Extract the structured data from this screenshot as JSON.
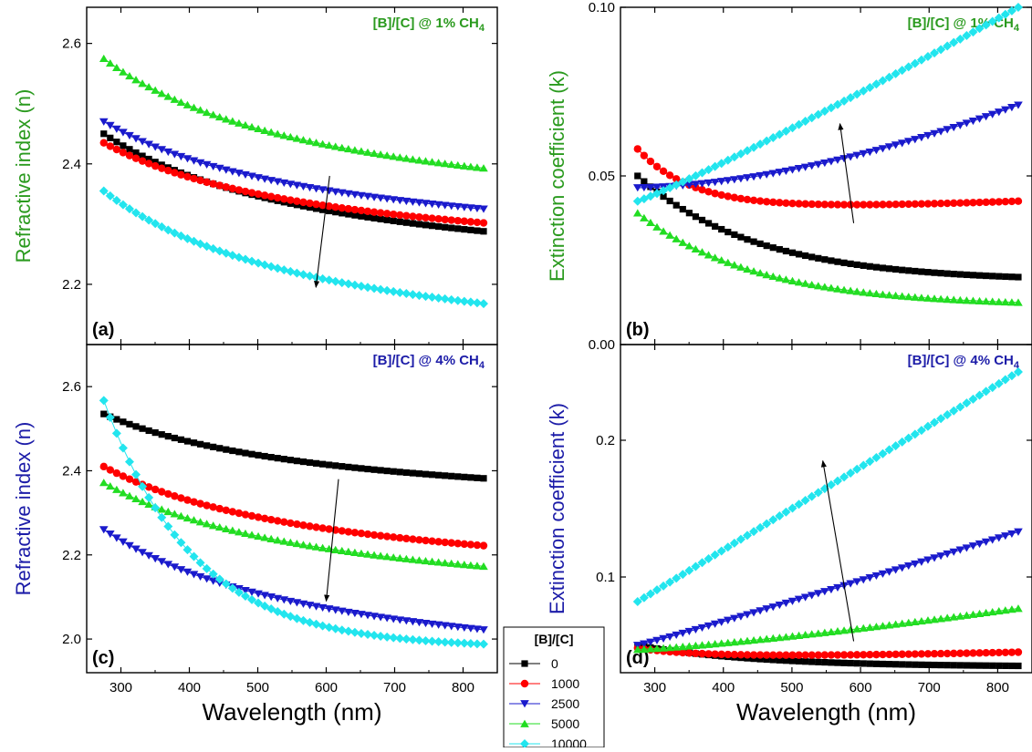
{
  "colors": {
    "0": "#000000",
    "1000": "#ff0000",
    "2500": "#1a1acc",
    "5000": "#22dd22",
    "10000": "#22e5ee",
    "panel_a_label": "#2a9a1e",
    "panel_c_label": "#1c1ca8"
  },
  "legend": {
    "title": "[B]/[C]",
    "entries": [
      {
        "label": "0",
        "marker": "square",
        "color": "#000000"
      },
      {
        "label": "1000",
        "marker": "circle",
        "color": "#ff0000"
      },
      {
        "label": "2500",
        "marker": "triangle-down",
        "color": "#1a1acc"
      },
      {
        "label": "5000",
        "marker": "triangle-up",
        "color": "#22dd22"
      },
      {
        "label": "10000",
        "marker": "diamond",
        "color": "#22e5ee"
      }
    ]
  },
  "chart_data": [
    {
      "id": "a",
      "type": "scatter",
      "panel_label": "(a)",
      "title": "[B]/[C] @ 1% CH",
      "title_sub": "4",
      "title_color": "#2a9a1e",
      "ylabel": "Refractive index (n)",
      "ylabel_color": "#2a9a1e",
      "xlabel": "",
      "xlim": [
        250,
        850
      ],
      "ylim": [
        2.1,
        2.66
      ],
      "xticks": [
        300,
        400,
        500,
        600,
        700,
        800
      ],
      "yticks": [
        2.2,
        2.4,
        2.6
      ],
      "ytick_labels": [
        "2.2",
        "2.4",
        "2.6"
      ],
      "grid": false,
      "x": [
        275,
        830
      ],
      "series": [
        {
          "name": "0",
          "model": "cauchy",
          "start": 2.45,
          "end": 2.288
        },
        {
          "name": "1000",
          "model": "cauchy",
          "start": 2.435,
          "end": 2.302
        },
        {
          "name": "2500",
          "model": "cauchy",
          "start": 2.47,
          "end": 2.325
        },
        {
          "name": "5000",
          "model": "cauchy",
          "start": 2.575,
          "end": 2.393
        },
        {
          "name": "10000",
          "model": "cauchy",
          "start": 2.355,
          "end": 2.168
        }
      ],
      "arrow": {
        "from": [
          605,
          2.38
        ],
        "to": [
          585,
          2.195
        ]
      }
    },
    {
      "id": "b",
      "type": "scatter",
      "panel_label": "(b)",
      "title": "[B]/[C] @ 1% CH",
      "title_sub": "4",
      "title_color": "#2a9a1e",
      "ylabel": "Extinction coefficient (k)",
      "ylabel_color": "#2a9a1e",
      "xlabel": "",
      "xlim": [
        250,
        850
      ],
      "ylim": [
        0.0,
        0.1
      ],
      "xticks": [
        300,
        400,
        500,
        600,
        700,
        800
      ],
      "yticks": [
        0.0,
        0.05,
        0.1
      ],
      "ytick_labels": [
        "0.00",
        "0.05",
        "0.10"
      ],
      "grid": false,
      "x": [
        275,
        830
      ],
      "series": [
        {
          "name": "0",
          "model": "decay",
          "start": 0.05,
          "end": 0.02
        },
        {
          "name": "1000",
          "model": "min",
          "start": 0.058,
          "min": 0.0405,
          "end": 0.0425
        },
        {
          "name": "2500",
          "model": "pow",
          "start": 0.0465,
          "end": 0.071,
          "p": 1.7
        },
        {
          "name": "5000",
          "model": "decay",
          "start": 0.039,
          "end": 0.0125
        },
        {
          "name": "10000",
          "model": "pow",
          "start": 0.0425,
          "end": 0.1,
          "p": 1.08
        }
      ],
      "arrow": {
        "from": [
          590,
          0.036
        ],
        "to": [
          570,
          0.0655
        ]
      }
    },
    {
      "id": "c",
      "type": "scatter",
      "panel_label": "(c)",
      "title": "[B]/[C] @ 4% CH",
      "title_sub": "4",
      "title_color": "#1c1ca8",
      "ylabel": "Refractive index (n)",
      "ylabel_color": "#1c1ca8",
      "xlabel": "Wavelength (nm)",
      "xlim": [
        250,
        850
      ],
      "ylim": [
        1.92,
        2.7
      ],
      "xticks": [
        300,
        400,
        500,
        600,
        700,
        800
      ],
      "yticks": [
        2.0,
        2.2,
        2.4,
        2.6
      ],
      "ytick_labels": [
        "2.0",
        "2.2",
        "2.4",
        "2.6"
      ],
      "grid": false,
      "x": [
        275,
        830
      ],
      "series": [
        {
          "name": "0",
          "model": "cauchy",
          "start": 2.535,
          "end": 2.382
        },
        {
          "name": "1000",
          "model": "cauchy",
          "start": 2.41,
          "end": 2.222
        },
        {
          "name": "2500",
          "model": "cauchy",
          "start": 2.26,
          "end": 2.022
        },
        {
          "name": "5000",
          "model": "cauchy",
          "start": 2.372,
          "end": 2.173
        },
        {
          "name": "10000",
          "model": "exp",
          "start": 2.567,
          "end": 1.988
        }
      ],
      "arrow": {
        "from": [
          618,
          2.38
        ],
        "to": [
          600,
          2.09
        ]
      }
    },
    {
      "id": "d",
      "type": "scatter",
      "panel_label": "(d)",
      "title": "[B]/[C] @ 4% CH",
      "title_sub": "4",
      "title_color": "#1c1ca8",
      "ylabel": "Extinction coefficient (k)",
      "ylabel_color": "#1c1ca8",
      "xlabel": "Wavelength (nm)",
      "xlim": [
        250,
        850
      ],
      "ylim": [
        0.03,
        0.27
      ],
      "xticks": [
        300,
        400,
        500,
        600,
        700,
        800
      ],
      "yticks": [
        0.1,
        0.2
      ],
      "ytick_labels": [
        "0.1",
        "0.2"
      ],
      "grid": false,
      "x": [
        275,
        830
      ],
      "series": [
        {
          "name": "0",
          "model": "decay",
          "start": 0.05,
          "end": 0.035
        },
        {
          "name": "1000",
          "model": "min",
          "start": 0.048,
          "min": 0.042,
          "end": 0.045
        },
        {
          "name": "2500",
          "model": "pow",
          "start": 0.05,
          "end": 0.133,
          "p": 1.05
        },
        {
          "name": "5000",
          "model": "pow",
          "start": 0.047,
          "end": 0.077,
          "p": 1.25
        },
        {
          "name": "10000",
          "model": "pow",
          "start": 0.082,
          "end": 0.25,
          "p": 1.0
        }
      ],
      "arrow": {
        "from": [
          590,
          0.053
        ],
        "to": [
          545,
          0.185
        ]
      }
    }
  ]
}
